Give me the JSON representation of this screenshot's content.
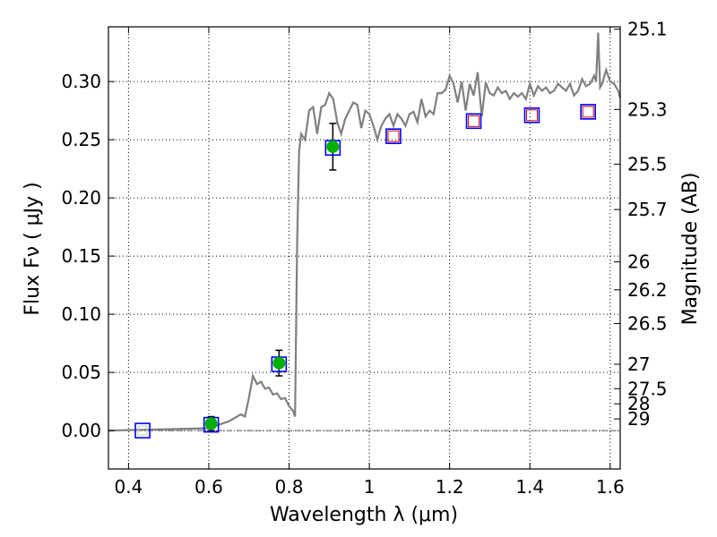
{
  "chart_data": {
    "type": "scatter",
    "title": "",
    "xlabel": "Wavelength  λ (μm)",
    "ylabel": "Flux  Fν  ( μJy )",
    "y2label": "Magnitude (AB)",
    "xlim": [
      0.35,
      1.625
    ],
    "ylim": [
      -0.033,
      0.347
    ],
    "grid": true,
    "x_ticks": [
      {
        "v": 0.4,
        "t": "0.4"
      },
      {
        "v": 0.6,
        "t": "0.6"
      },
      {
        "v": 0.8,
        "t": "0.8"
      },
      {
        "v": 1.0,
        "t": "1"
      },
      {
        "v": 1.2,
        "t": "1.2"
      },
      {
        "v": 1.4,
        "t": "1.4"
      },
      {
        "v": 1.6,
        "t": "1.6"
      }
    ],
    "y_ticks": [
      {
        "v": 0.0,
        "t": "0.00"
      },
      {
        "v": 0.05,
        "t": "0.05"
      },
      {
        "v": 0.1,
        "t": "0.10"
      },
      {
        "v": 0.15,
        "t": "0.15"
      },
      {
        "v": 0.2,
        "t": "0.20"
      },
      {
        "v": 0.25,
        "t": "0.25"
      },
      {
        "v": 0.3,
        "t": "0.30"
      }
    ],
    "y2_ticks": [
      {
        "v": 0.345,
        "t": "25.1"
      },
      {
        "v": 0.276,
        "t": "25.3"
      },
      {
        "v": 0.229,
        "t": "25.5"
      },
      {
        "v": 0.19,
        "t": "25.7"
      },
      {
        "v": 0.145,
        "t": "26"
      },
      {
        "v": 0.121,
        "t": "26.2"
      },
      {
        "v": 0.092,
        "t": "26.5"
      },
      {
        "v": 0.057,
        "t": "27"
      },
      {
        "v": 0.036,
        "t": "27.5"
      },
      {
        "v": 0.023,
        "t": "28"
      },
      {
        "v": 0.01,
        "t": "29"
      }
    ],
    "model_spectrum": {
      "color": "#808080",
      "x": [
        0.35,
        0.6,
        0.65,
        0.68,
        0.69,
        0.7,
        0.71,
        0.72,
        0.73,
        0.74,
        0.75,
        0.76,
        0.77,
        0.78,
        0.79,
        0.8,
        0.81,
        0.815,
        0.82,
        0.825,
        0.83,
        0.84,
        0.85,
        0.86,
        0.87,
        0.88,
        0.89,
        0.9,
        0.91,
        0.92,
        0.93,
        0.94,
        0.95,
        0.96,
        0.97,
        0.98,
        0.99,
        1.0,
        1.01,
        1.02,
        1.03,
        1.04,
        1.05,
        1.06,
        1.07,
        1.08,
        1.09,
        1.1,
        1.11,
        1.12,
        1.13,
        1.14,
        1.15,
        1.16,
        1.17,
        1.18,
        1.19,
        1.2,
        1.21,
        1.22,
        1.23,
        1.24,
        1.25,
        1.26,
        1.27,
        1.28,
        1.29,
        1.3,
        1.31,
        1.32,
        1.33,
        1.34,
        1.35,
        1.36,
        1.37,
        1.38,
        1.39,
        1.4,
        1.41,
        1.42,
        1.43,
        1.44,
        1.45,
        1.46,
        1.47,
        1.48,
        1.49,
        1.5,
        1.51,
        1.52,
        1.53,
        1.54,
        1.55,
        1.56,
        1.565,
        1.57,
        1.575,
        1.58,
        1.59,
        1.6,
        1.61,
        1.62,
        1.625
      ],
      "y": [
        0.0,
        0.002,
        0.008,
        0.014,
        0.012,
        0.028,
        0.047,
        0.04,
        0.042,
        0.036,
        0.037,
        0.031,
        0.032,
        0.027,
        0.028,
        0.021,
        0.017,
        0.012,
        0.16,
        0.24,
        0.255,
        0.25,
        0.275,
        0.278,
        0.255,
        0.278,
        0.28,
        0.29,
        0.285,
        0.265,
        0.255,
        0.268,
        0.275,
        0.282,
        0.28,
        0.26,
        0.275,
        0.272,
        0.262,
        0.25,
        0.262,
        0.268,
        0.272,
        0.262,
        0.272,
        0.268,
        0.262,
        0.272,
        0.274,
        0.265,
        0.285,
        0.27,
        0.275,
        0.272,
        0.29,
        0.29,
        0.293,
        0.305,
        0.298,
        0.282,
        0.3,
        0.275,
        0.298,
        0.288,
        0.308,
        0.27,
        0.299,
        0.29,
        0.288,
        0.295,
        0.29,
        0.292,
        0.285,
        0.29,
        0.287,
        0.29,
        0.285,
        0.298,
        0.288,
        0.296,
        0.292,
        0.295,
        0.29,
        0.292,
        0.298,
        0.295,
        0.292,
        0.298,
        0.288,
        0.292,
        0.302,
        0.296,
        0.298,
        0.305,
        0.3,
        0.342,
        0.295,
        0.298,
        0.31,
        0.3,
        0.298,
        0.292,
        0.286
      ]
    },
    "model_photometry": {
      "marker": "square",
      "edge_color": "#0000ff",
      "x": [
        0.435,
        0.606,
        0.775,
        0.909,
        1.06,
        1.26,
        1.405,
        1.545
      ],
      "y": [
        0.0,
        0.005,
        0.057,
        0.243,
        0.253,
        0.266,
        0.271,
        0.274
      ]
    },
    "upper_limits": {
      "marker": "square",
      "edge_color": "#cc0000",
      "x": [
        1.06,
        1.26,
        1.405,
        1.545
      ],
      "y": [
        0.253,
        0.266,
        0.271,
        0.274
      ]
    },
    "observed": {
      "marker": "circle",
      "color": "#00b000",
      "x": [
        0.606,
        0.775,
        0.909
      ],
      "y": [
        0.006,
        0.058,
        0.244
      ],
      "err": [
        0.006,
        0.011,
        0.02
      ]
    },
    "zero_line": {
      "value": 0.0,
      "style": "dash-dot"
    },
    "ghost_box": {
      "x": 0.435,
      "y": 0.0
    }
  }
}
